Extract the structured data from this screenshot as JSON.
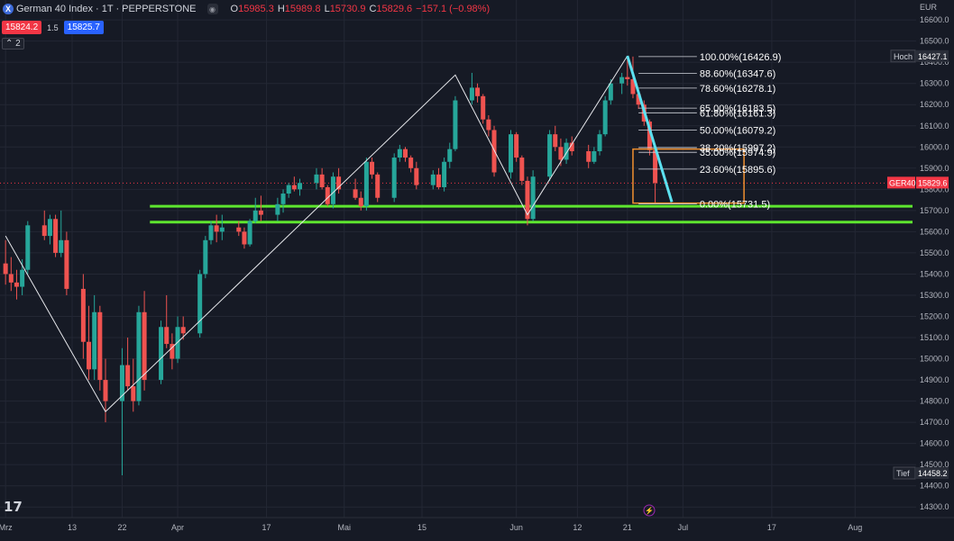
{
  "header": {
    "logo_letter": "X",
    "title": "German 40 Index · 1T · PEPPERSTONE",
    "ohlc": {
      "o_label": "O",
      "o": "15985.3",
      "h_label": "H",
      "h": "15989.8",
      "l_label": "L",
      "l": "15730.9",
      "c_label": "C",
      "c": "15829.6"
    },
    "change": "−157.1 (−0.98%)"
  },
  "prices": {
    "bid": "15824.2",
    "spread": "1.5",
    "ask": "15825.7"
  },
  "collapse_label": "2",
  "tv_logo": "17",
  "colors": {
    "bg": "#161a25",
    "up": "#26a69a",
    "down": "#ef5350",
    "support": "#5ee62f",
    "trend": "#5ce1f0",
    "box": "#f0902f"
  },
  "chart_data": {
    "type": "candlestick",
    "currency": "EUR",
    "symbol_tag": "GER40",
    "last_price": "15829.6",
    "high_label": "Hoch",
    "high_value": "16427.1",
    "low_label": "Tief",
    "low_value": "14458.2",
    "y_ticks": [
      "16600.0",
      "16500.0",
      "16400.0",
      "16300.0",
      "16200.0",
      "16100.0",
      "16000.0",
      "15900.0",
      "15800.0",
      "15700.0",
      "15600.0",
      "15500.0",
      "15400.0",
      "15300.0",
      "15200.0",
      "15100.0",
      "15000.0",
      "14900.0",
      "14800.0",
      "14700.0",
      "14600.0",
      "14500.0",
      "14400.0",
      "14300.0"
    ],
    "ylim": [
      14250,
      16660
    ],
    "x_ticks": [
      {
        "label": "Mrz",
        "day": 0
      },
      {
        "label": "13",
        "day": 12
      },
      {
        "label": "22",
        "day": 21
      },
      {
        "label": "Apr",
        "day": 31
      },
      {
        "label": "17",
        "day": 47
      },
      {
        "label": "Mai",
        "day": 61
      },
      {
        "label": "15",
        "day": 75
      },
      {
        "label": "Jun",
        "day": 92
      },
      {
        "label": "12",
        "day": 103
      },
      {
        "label": "21",
        "day": 112
      },
      {
        "label": "Jul",
        "day": 122
      },
      {
        "label": "17",
        "day": 138
      },
      {
        "label": "Aug",
        "day": 153
      }
    ],
    "xlim": [
      -1,
      164
    ],
    "candles": [
      {
        "d": 0,
        "o": 15450,
        "h": 15560,
        "l": 15350,
        "c": 15400
      },
      {
        "d": 1,
        "o": 15400,
        "h": 15480,
        "l": 15320,
        "c": 15360
      },
      {
        "d": 2,
        "o": 15360,
        "h": 15420,
        "l": 15280,
        "c": 15340
      },
      {
        "d": 3,
        "o": 15340,
        "h": 15470,
        "l": 15300,
        "c": 15420
      },
      {
        "d": 4,
        "o": 15420,
        "h": 15650,
        "l": 15400,
        "c": 15630
      },
      {
        "d": 7,
        "o": 15630,
        "h": 15700,
        "l": 15560,
        "c": 15580
      },
      {
        "d": 8,
        "o": 15580,
        "h": 15680,
        "l": 15540,
        "c": 15660
      },
      {
        "d": 9,
        "o": 15660,
        "h": 15680,
        "l": 15480,
        "c": 15500
      },
      {
        "d": 10,
        "o": 15500,
        "h": 15700,
        "l": 15480,
        "c": 15560
      },
      {
        "d": 11,
        "o": 15560,
        "h": 15600,
        "l": 15300,
        "c": 15330
      },
      {
        "d": 14,
        "o": 15330,
        "h": 15400,
        "l": 15000,
        "c": 15080
      },
      {
        "d": 15,
        "o": 15080,
        "h": 15250,
        "l": 14900,
        "c": 14950
      },
      {
        "d": 16,
        "o": 14950,
        "h": 15300,
        "l": 14900,
        "c": 15220
      },
      {
        "d": 17,
        "o": 15220,
        "h": 15250,
        "l": 14850,
        "c": 14900
      },
      {
        "d": 18,
        "o": 14900,
        "h": 15000,
        "l": 14700,
        "c": 14800
      },
      {
        "d": 21,
        "o": 14800,
        "h": 15050,
        "l": 14450,
        "c": 14970
      },
      {
        "d": 22,
        "o": 14970,
        "h": 15100,
        "l": 14850,
        "c": 14870
      },
      {
        "d": 23,
        "o": 14870,
        "h": 15000,
        "l": 14750,
        "c": 14800
      },
      {
        "d": 24,
        "o": 14800,
        "h": 15250,
        "l": 14780,
        "c": 15220
      },
      {
        "d": 25,
        "o": 15220,
        "h": 15320,
        "l": 14850,
        "c": 14900
      },
      {
        "d": 28,
        "o": 14900,
        "h": 15180,
        "l": 14880,
        "c": 15150
      },
      {
        "d": 29,
        "o": 15150,
        "h": 15300,
        "l": 15050,
        "c": 15070
      },
      {
        "d": 30,
        "o": 15070,
        "h": 15120,
        "l": 14950,
        "c": 15000
      },
      {
        "d": 31,
        "o": 15000,
        "h": 15200,
        "l": 14980,
        "c": 15150
      },
      {
        "d": 32,
        "o": 15150,
        "h": 15200,
        "l": 15090,
        "c": 15120
      },
      {
        "d": 35,
        "o": 15120,
        "h": 15420,
        "l": 15100,
        "c": 15400
      },
      {
        "d": 36,
        "o": 15400,
        "h": 15580,
        "l": 15380,
        "c": 15560
      },
      {
        "d": 37,
        "o": 15560,
        "h": 15650,
        "l": 15540,
        "c": 15630
      },
      {
        "d": 38,
        "o": 15630,
        "h": 15680,
        "l": 15550,
        "c": 15600
      },
      {
        "d": 39,
        "o": 15600,
        "h": 15680,
        "l": 15560,
        "c": 15620
      },
      {
        "d": 42,
        "o": 15620,
        "h": 15650,
        "l": 15580,
        "c": 15600
      },
      {
        "d": 43,
        "o": 15600,
        "h": 15620,
        "l": 15520,
        "c": 15540
      },
      {
        "d": 44,
        "o": 15540,
        "h": 15660,
        "l": 15530,
        "c": 15650
      },
      {
        "d": 45,
        "o": 15650,
        "h": 15760,
        "l": 15640,
        "c": 15700
      },
      {
        "d": 46,
        "o": 15700,
        "h": 15770,
        "l": 15650,
        "c": 15680
      },
      {
        "d": 49,
        "o": 15680,
        "h": 15760,
        "l": 15650,
        "c": 15730
      },
      {
        "d": 50,
        "o": 15730,
        "h": 15800,
        "l": 15690,
        "c": 15780
      },
      {
        "d": 51,
        "o": 15780,
        "h": 15830,
        "l": 15760,
        "c": 15820
      },
      {
        "d": 52,
        "o": 15820,
        "h": 15860,
        "l": 15790,
        "c": 15800
      },
      {
        "d": 53,
        "o": 15800,
        "h": 15850,
        "l": 15770,
        "c": 15830
      },
      {
        "d": 56,
        "o": 15830,
        "h": 15900,
        "l": 15800,
        "c": 15870
      },
      {
        "d": 57,
        "o": 15870,
        "h": 15900,
        "l": 15800,
        "c": 15810
      },
      {
        "d": 58,
        "o": 15810,
        "h": 15820,
        "l": 15720,
        "c": 15730
      },
      {
        "d": 59,
        "o": 15730,
        "h": 15880,
        "l": 15710,
        "c": 15860
      },
      {
        "d": 60,
        "o": 15860,
        "h": 15900,
        "l": 15780,
        "c": 15800
      },
      {
        "d": 63,
        "o": 15800,
        "h": 15850,
        "l": 15750,
        "c": 15760
      },
      {
        "d": 64,
        "o": 15760,
        "h": 15790,
        "l": 15700,
        "c": 15720
      },
      {
        "d": 65,
        "o": 15720,
        "h": 15950,
        "l": 15700,
        "c": 15930
      },
      {
        "d": 66,
        "o": 15930,
        "h": 15950,
        "l": 15850,
        "c": 15870
      },
      {
        "d": 67,
        "o": 15870,
        "h": 15880,
        "l": 15740,
        "c": 15760
      },
      {
        "d": 70,
        "o": 15760,
        "h": 15970,
        "l": 15740,
        "c": 15950
      },
      {
        "d": 71,
        "o": 15950,
        "h": 16010,
        "l": 15930,
        "c": 15990
      },
      {
        "d": 72,
        "o": 15990,
        "h": 16000,
        "l": 15930,
        "c": 15950
      },
      {
        "d": 73,
        "o": 15950,
        "h": 15960,
        "l": 15880,
        "c": 15900
      },
      {
        "d": 74,
        "o": 15900,
        "h": 15930,
        "l": 15800,
        "c": 15820
      },
      {
        "d": 77,
        "o": 15820,
        "h": 15890,
        "l": 15800,
        "c": 15870
      },
      {
        "d": 78,
        "o": 15870,
        "h": 15900,
        "l": 15800,
        "c": 15810
      },
      {
        "d": 79,
        "o": 15810,
        "h": 15950,
        "l": 15790,
        "c": 15930
      },
      {
        "d": 80,
        "o": 15930,
        "h": 16020,
        "l": 15900,
        "c": 15990
      },
      {
        "d": 81,
        "o": 15990,
        "h": 16240,
        "l": 15980,
        "c": 16220
      },
      {
        "d": 84,
        "o": 16220,
        "h": 16350,
        "l": 16200,
        "c": 16280
      },
      {
        "d": 85,
        "o": 16280,
        "h": 16300,
        "l": 16210,
        "c": 16240
      },
      {
        "d": 86,
        "o": 16240,
        "h": 16250,
        "l": 16110,
        "c": 16130
      },
      {
        "d": 87,
        "o": 16130,
        "h": 16150,
        "l": 16050,
        "c": 16080
      },
      {
        "d": 88,
        "o": 16080,
        "h": 16100,
        "l": 15860,
        "c": 15880
      },
      {
        "d": 91,
        "o": 15880,
        "h": 16080,
        "l": 15850,
        "c": 16060
      },
      {
        "d": 92,
        "o": 16060,
        "h": 16070,
        "l": 15930,
        "c": 15950
      },
      {
        "d": 93,
        "o": 15950,
        "h": 15960,
        "l": 15820,
        "c": 15840
      },
      {
        "d": 94,
        "o": 15840,
        "h": 15860,
        "l": 15630,
        "c": 15660
      },
      {
        "d": 95,
        "o": 15660,
        "h": 15890,
        "l": 15650,
        "c": 15860
      },
      {
        "d": 98,
        "o": 15860,
        "h": 16080,
        "l": 15840,
        "c": 16060
      },
      {
        "d": 99,
        "o": 16060,
        "h": 16100,
        "l": 15980,
        "c": 16000
      },
      {
        "d": 100,
        "o": 16000,
        "h": 16040,
        "l": 15910,
        "c": 15940
      },
      {
        "d": 101,
        "o": 15940,
        "h": 16040,
        "l": 15920,
        "c": 16020
      },
      {
        "d": 102,
        "o": 16020,
        "h": 16050,
        "l": 15960,
        "c": 15980
      },
      {
        "d": 105,
        "o": 15980,
        "h": 16010,
        "l": 15900,
        "c": 15930
      },
      {
        "d": 106,
        "o": 15930,
        "h": 16000,
        "l": 15920,
        "c": 15980
      },
      {
        "d": 107,
        "o": 15980,
        "h": 16080,
        "l": 15960,
        "c": 16060
      },
      {
        "d": 108,
        "o": 16060,
        "h": 16240,
        "l": 16050,
        "c": 16220
      },
      {
        "d": 109,
        "o": 16220,
        "h": 16320,
        "l": 16200,
        "c": 16300
      },
      {
        "d": 111,
        "o": 16300,
        "h": 16350,
        "l": 16250,
        "c": 16330
      },
      {
        "d": 112,
        "o": 16330,
        "h": 16420,
        "l": 16290,
        "c": 16320
      },
      {
        "d": 113,
        "o": 16320,
        "h": 16427,
        "l": 16230,
        "c": 16250
      },
      {
        "d": 114,
        "o": 16250,
        "h": 16270,
        "l": 16180,
        "c": 16200
      },
      {
        "d": 115,
        "o": 16200,
        "h": 16220,
        "l": 16100,
        "c": 16120
      },
      {
        "d": 116,
        "o": 16120,
        "h": 16130,
        "l": 15960,
        "c": 15985
      },
      {
        "d": 117,
        "o": 15985,
        "h": 15990,
        "l": 15731,
        "c": 15830
      }
    ],
    "zigzag": [
      {
        "d": 0,
        "p": 15580
      },
      {
        "d": 18,
        "p": 14750
      },
      {
        "d": 81,
        "p": 16340
      },
      {
        "d": 94,
        "p": 15680
      },
      {
        "d": 112,
        "p": 16430
      }
    ],
    "trend_line": {
      "d1": 112,
      "p1": 16430,
      "d2": 120,
      "p2": 15740
    },
    "support_lines": [
      15720,
      15645
    ],
    "fib": {
      "d_start": 114,
      "d_end": 125,
      "label_day": 125,
      "levels": [
        {
          "label": "100.00%(16426.9)",
          "p": 16426.9
        },
        {
          "label": "88.60%(16347.6)",
          "p": 16347.6
        },
        {
          "label": "78.60%(16278.1)",
          "p": 16278.1
        },
        {
          "label": "65.00%(16183.5)",
          "p": 16183.5
        },
        {
          "label": "61.80%(16161.3)",
          "p": 16161.3
        },
        {
          "label": "50.00%(16079.2)",
          "p": 16079.2
        },
        {
          "label": "38.20%(15997.2)",
          "p": 15997.2
        },
        {
          "label": "35.00%(15974.9)",
          "p": 15974.9
        },
        {
          "label": "23.60%(15895.6)",
          "p": 15895.6
        },
        {
          "label": "0.00%(15731.5)",
          "p": 15731.5
        }
      ]
    },
    "box": {
      "d1": 113,
      "d2": 133,
      "p1": 15990,
      "p2": 15735
    }
  }
}
